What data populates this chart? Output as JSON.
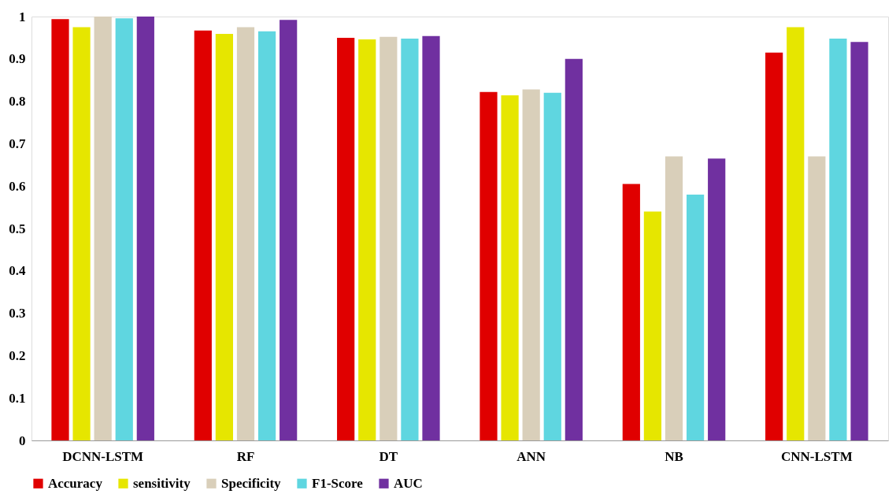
{
  "chart_data": {
    "type": "bar",
    "categories": [
      "DCNN-LSTM",
      "RF",
      "DT",
      "ANN",
      "NB",
      "CNN-LSTM"
    ],
    "series": [
      {
        "name": "Accuracy",
        "color": "#e00000",
        "values": [
          0.994,
          0.967,
          0.95,
          0.822,
          0.605,
          0.915
        ]
      },
      {
        "name": "sensitivity",
        "color": "#e6e600",
        "values": [
          0.975,
          0.959,
          0.946,
          0.814,
          0.54,
          0.975
        ]
      },
      {
        "name": "Specificity",
        "color": "#d9cfba",
        "values": [
          1.0,
          0.975,
          0.952,
          0.828,
          0.67,
          0.67
        ]
      },
      {
        "name": "F1-Score",
        "color": "#5fd6e0",
        "values": [
          0.996,
          0.965,
          0.948,
          0.82,
          0.58,
          0.948
        ]
      },
      {
        "name": "AUC",
        "color": "#7030a0",
        "values": [
          1.0,
          0.992,
          0.954,
          0.9,
          0.665,
          0.94
        ]
      }
    ],
    "ylim": [
      0,
      1
    ],
    "yticks": [
      0,
      0.1,
      0.2,
      0.3,
      0.4,
      0.5,
      0.6,
      0.7,
      0.8,
      0.9,
      1
    ],
    "grid": false,
    "legend": "bottom"
  }
}
